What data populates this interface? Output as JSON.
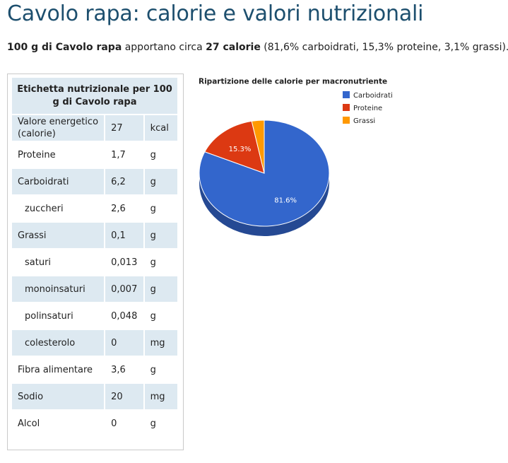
{
  "page": {
    "title": "Cavolo rapa: calorie e valori nutrizionali"
  },
  "intro": {
    "amount_food": "100 g di Cavolo rapa",
    "verb": " apportano circa ",
    "calories": "27 calorie",
    "breakdown": " (81,6% carboidrati, 15,3% proteine, 3,1% grassi)."
  },
  "nutrition_table": {
    "header": "Etichetta nutrizionale per 100 g di Cavolo rapa",
    "rows": [
      {
        "label": "Valore energetico (calorie)",
        "value": "27",
        "unit": "kcal",
        "sub": false
      },
      {
        "label": "Proteine",
        "value": "1,7",
        "unit": "g",
        "sub": false
      },
      {
        "label": "Carboidrati",
        "value": "6,2",
        "unit": "g",
        "sub": false
      },
      {
        "label": "zuccheri",
        "value": "2,6",
        "unit": "g",
        "sub": true
      },
      {
        "label": "Grassi",
        "value": "0,1",
        "unit": "g",
        "sub": false
      },
      {
        "label": "saturi",
        "value": "0,013",
        "unit": "g",
        "sub": true
      },
      {
        "label": "monoinsaturi",
        "value": "0,007",
        "unit": "g",
        "sub": true
      },
      {
        "label": "polinsaturi",
        "value": "0,048",
        "unit": "g",
        "sub": true
      },
      {
        "label": "colesterolo",
        "value": "0",
        "unit": "mg",
        "sub": true
      },
      {
        "label": "Fibra alimentare",
        "value": "3,6",
        "unit": "g",
        "sub": false
      },
      {
        "label": "Sodio",
        "value": "20",
        "unit": "mg",
        "sub": false
      },
      {
        "label": "Alcol",
        "value": "0",
        "unit": "g",
        "sub": false
      }
    ]
  },
  "colors": {
    "title": "#1d4f6e",
    "table_row": "#dde9f1",
    "carboidrati": "#3366cc",
    "proteine": "#dc3912",
    "grassi": "#ff9900"
  },
  "chart_data": {
    "type": "pie",
    "title": "Ripartizione delle calorie per macronutriente",
    "three_d": true,
    "legend_position": "right",
    "categories": [
      "Carboidrati",
      "Proteine",
      "Grassi"
    ],
    "values": [
      81.6,
      15.3,
      3.1
    ],
    "data_labels": [
      "81.6%",
      "15.3%",
      ""
    ],
    "colors": [
      "#3366cc",
      "#dc3912",
      "#ff9900"
    ]
  }
}
